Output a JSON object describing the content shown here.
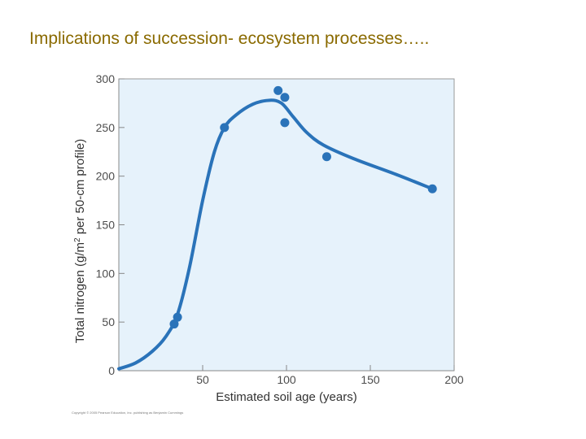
{
  "slide": {
    "title": "Implications of succession- ecosystem processes….."
  },
  "credit": "Copyright © 2005 Pearson Education, Inc. publishing as Benjamin Cummings",
  "chart_data": {
    "type": "scatter",
    "title": "",
    "xlabel": "Estimated soil age (years)",
    "ylabel": "Total nitrogen (g/m² per 50-cm profile)",
    "xlim": [
      0,
      200
    ],
    "ylim": [
      0,
      300
    ],
    "xticks": [
      50,
      100,
      150,
      200
    ],
    "yticks": [
      0,
      50,
      100,
      150,
      200,
      250,
      300
    ],
    "grid": false,
    "plot_background": "#e6f2fb",
    "series_color": "#2a73b9",
    "points": [
      {
        "x": 33,
        "y": 48
      },
      {
        "x": 35,
        "y": 55
      },
      {
        "x": 63,
        "y": 250
      },
      {
        "x": 95,
        "y": 288
      },
      {
        "x": 99,
        "y": 281
      },
      {
        "x": 99,
        "y": 255
      },
      {
        "x": 124,
        "y": 220
      },
      {
        "x": 187,
        "y": 187
      }
    ],
    "trend_curve": [
      {
        "x": 0,
        "y": 2
      },
      {
        "x": 10,
        "y": 8
      },
      {
        "x": 20,
        "y": 20
      },
      {
        "x": 28,
        "y": 35
      },
      {
        "x": 35,
        "y": 58
      },
      {
        "x": 42,
        "y": 105
      },
      {
        "x": 50,
        "y": 175
      },
      {
        "x": 57,
        "y": 225
      },
      {
        "x": 63,
        "y": 250
      },
      {
        "x": 70,
        "y": 263
      },
      {
        "x": 80,
        "y": 274
      },
      {
        "x": 90,
        "y": 278
      },
      {
        "x": 97,
        "y": 275
      },
      {
        "x": 104,
        "y": 261
      },
      {
        "x": 112,
        "y": 245
      },
      {
        "x": 122,
        "y": 232
      },
      {
        "x": 140,
        "y": 218
      },
      {
        "x": 165,
        "y": 202
      },
      {
        "x": 187,
        "y": 187
      }
    ]
  }
}
